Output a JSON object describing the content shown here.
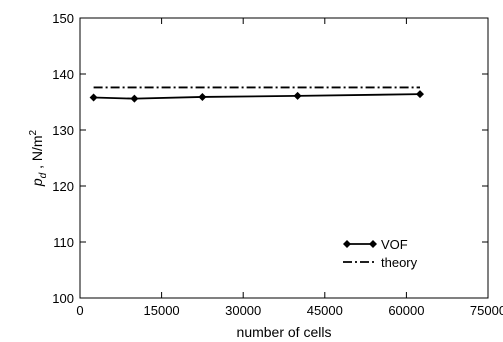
{
  "chart_data": {
    "type": "line",
    "xlabel": "number of cells",
    "ylabel": "p_d , N/m^2",
    "ylabel_parts": {
      "main": "p",
      "sub": "d",
      "sep": " , N/m",
      "sup": "2"
    },
    "xlim": [
      0,
      75000
    ],
    "ylim": [
      100,
      150
    ],
    "x_ticks": [
      0,
      15000,
      30000,
      45000,
      60000,
      75000
    ],
    "y_ticks": [
      100,
      110,
      120,
      130,
      140,
      150
    ],
    "grid": false,
    "legend_position": "bottom-right",
    "series": [
      {
        "name": "VOF",
        "style": "solid-diamond",
        "color": "#000000",
        "x": [
          2500,
          10000,
          22500,
          40000,
          62500
        ],
        "y": [
          135.8,
          135.6,
          135.9,
          136.1,
          136.4
        ]
      },
      {
        "name": "theory",
        "style": "dash-dot",
        "color": "#000000",
        "x": [
          2500,
          62500
        ],
        "y": [
          137.6,
          137.6
        ]
      }
    ]
  }
}
